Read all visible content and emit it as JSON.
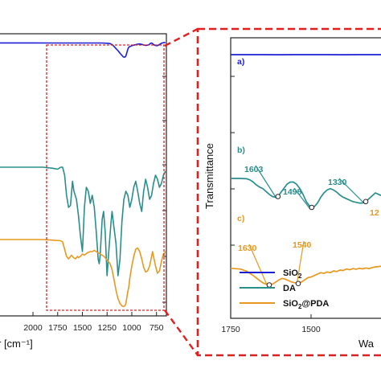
{
  "chart_data": [
    {
      "type": "line",
      "panel": "overview",
      "xlabel": "r [cm⁻¹]",
      "xlim": [
        2350,
        650
      ],
      "x_reversed": true,
      "grid": false,
      "x_ticks": [
        "2000",
        "1750",
        "1500",
        "1250",
        "1000",
        "750"
      ],
      "series": [
        {
          "id": "sio2",
          "color": "#1d1dd8",
          "x": [
            2350,
            2000,
            1800,
            1600,
            1400,
            1300,
            1250,
            1220,
            1200,
            1180,
            1160,
            1140,
            1120,
            1100,
            1085,
            1070,
            1060,
            1050,
            1040,
            1030,
            1000,
            960,
            940,
            920,
            900,
            880,
            860,
            840,
            820,
            810,
            800,
            790,
            780,
            760,
            740,
            720,
            700,
            680,
            660
          ],
          "y": [
            0.935,
            0.935,
            0.934,
            0.933,
            0.932,
            0.93,
            0.92,
            0.9,
            0.84,
            0.74,
            0.62,
            0.5,
            0.36,
            0.23,
            0.14,
            0.13,
            0.2,
            0.38,
            0.58,
            0.7,
            0.78,
            0.84,
            0.87,
            0.88,
            0.86,
            0.82,
            0.8,
            0.81,
            0.86,
            0.92,
            0.93,
            0.9,
            0.84,
            0.79,
            0.78,
            0.85,
            0.92,
            0.95,
            0.96
          ]
        },
        {
          "id": "da",
          "color": "#2a8f8c",
          "x": [
            2350,
            2100,
            1900,
            1800,
            1750,
            1720,
            1700,
            1680,
            1660,
            1640,
            1620,
            1600,
            1585,
            1560,
            1540,
            1520,
            1500,
            1490,
            1480,
            1460,
            1440,
            1420,
            1400,
            1380,
            1360,
            1340,
            1330,
            1320,
            1300,
            1285,
            1270,
            1250,
            1230,
            1210,
            1200,
            1180,
            1160,
            1140,
            1120,
            1100,
            1080,
            1060,
            1040,
            1020,
            1000,
            980,
            960,
            940,
            920,
            900,
            880,
            860,
            840,
            820,
            800,
            780,
            760,
            740,
            720,
            700,
            680,
            660
          ],
          "y": [
            0.82,
            0.82,
            0.82,
            0.815,
            0.81,
            0.82,
            0.82,
            0.78,
            0.68,
            0.62,
            0.63,
            0.75,
            0.7,
            0.66,
            0.58,
            0.48,
            0.4,
            0.5,
            0.62,
            0.72,
            0.7,
            0.64,
            0.68,
            0.62,
            0.5,
            0.36,
            0.34,
            0.38,
            0.56,
            0.6,
            0.5,
            0.28,
            0.42,
            0.55,
            0.6,
            0.52,
            0.44,
            0.28,
            0.36,
            0.55,
            0.66,
            0.7,
            0.68,
            0.62,
            0.66,
            0.72,
            0.75,
            0.7,
            0.64,
            0.6,
            0.7,
            0.76,
            0.72,
            0.66,
            0.68,
            0.74,
            0.78,
            0.76,
            0.72,
            0.74,
            0.78,
            0.8
          ]
        },
        {
          "id": "sio2pda",
          "color": "#e8981e",
          "x": [
            2350,
            2100,
            1900,
            1800,
            1720,
            1700,
            1680,
            1660,
            1640,
            1630,
            1610,
            1590,
            1570,
            1550,
            1540,
            1520,
            1500,
            1480,
            1450,
            1420,
            1400,
            1380,
            1360,
            1340,
            1320,
            1300,
            1280,
            1260,
            1240,
            1220,
            1200,
            1180,
            1160,
            1140,
            1120,
            1100,
            1085,
            1070,
            1060,
            1050,
            1040,
            1030,
            1020,
            1000,
            980,
            960,
            940,
            920,
            900,
            880,
            860,
            840,
            820,
            800,
            790,
            780,
            760,
            740,
            720,
            700,
            680,
            660
          ],
          "y": [
            0.6,
            0.6,
            0.6,
            0.595,
            0.59,
            0.58,
            0.52,
            0.46,
            0.44,
            0.45,
            0.47,
            0.45,
            0.44,
            0.46,
            0.45,
            0.46,
            0.48,
            0.47,
            0.49,
            0.5,
            0.5,
            0.51,
            0.5,
            0.49,
            0.48,
            0.47,
            0.46,
            0.44,
            0.42,
            0.4,
            0.35,
            0.27,
            0.18,
            0.11,
            0.07,
            0.05,
            0.045,
            0.05,
            0.07,
            0.12,
            0.17,
            0.21,
            0.28,
            0.38,
            0.46,
            0.52,
            0.53,
            0.5,
            0.44,
            0.37,
            0.33,
            0.34,
            0.38,
            0.46,
            0.5,
            0.46,
            0.38,
            0.32,
            0.34,
            0.42,
            0.48,
            0.5
          ]
        }
      ]
    },
    {
      "type": "line",
      "panel": "zoom",
      "xlabel": "Wa",
      "ylabel": "Transmittance",
      "xlim": [
        1750,
        1250
      ],
      "x_reversed": true,
      "grid": false,
      "x_ticks": [
        "1750",
        "1500"
      ],
      "legend_position": "bottom-left",
      "series": [
        {
          "id": "sio2",
          "name": "SiO₂",
          "name_base": "SiO",
          "name_sub": "2",
          "panel_label": "a)",
          "color": "#1d1dd8",
          "x": [
            1750,
            1700,
            1650,
            1600,
            1550,
            1500,
            1450,
            1400,
            1350,
            1300,
            1250
          ],
          "y": [
            0.9,
            0.898,
            0.9,
            0.897,
            0.899,
            0.898,
            0.9,
            0.897,
            0.899,
            0.898,
            0.897
          ]
        },
        {
          "id": "da",
          "name": "DA",
          "panel_label": "b)",
          "color": "#2a8f8c",
          "x": [
            1750,
            1720,
            1700,
            1690,
            1680,
            1670,
            1660,
            1650,
            1640,
            1630,
            1620,
            1610,
            1603,
            1595,
            1585,
            1575,
            1565,
            1555,
            1545,
            1535,
            1525,
            1515,
            1505,
            1498,
            1490,
            1480,
            1470,
            1460,
            1450,
            1440,
            1430,
            1420,
            1410,
            1400,
            1390,
            1380,
            1370,
            1360,
            1350,
            1340,
            1330,
            1320,
            1310,
            1300,
            1290,
            1280,
            1270,
            1260,
            1250
          ],
          "y": [
            0.6,
            0.6,
            0.598,
            0.59,
            0.575,
            0.555,
            0.54,
            0.53,
            0.51,
            0.49,
            0.475,
            0.47,
            0.475,
            0.5,
            0.53,
            0.56,
            0.575,
            0.575,
            0.56,
            0.53,
            0.49,
            0.44,
            0.41,
            0.4,
            0.405,
            0.43,
            0.47,
            0.5,
            0.52,
            0.53,
            0.52,
            0.505,
            0.485,
            0.47,
            0.46,
            0.45,
            0.44,
            0.435,
            0.43,
            0.43,
            0.44,
            0.46,
            0.48,
            0.5,
            0.49,
            0.48,
            0.47,
            0.47,
            0.48
          ]
        },
        {
          "id": "sio2pda",
          "name": "SiO₂@PDA",
          "name_base": "SiO",
          "name_sub": "2",
          "name_rest": "@PDA",
          "panel_label": "c)",
          "color": "#e8981e",
          "x": [
            1750,
            1720,
            1700,
            1680,
            1660,
            1650,
            1640,
            1630,
            1620,
            1610,
            1600,
            1590,
            1580,
            1570,
            1560,
            1550,
            1540,
            1530,
            1520,
            1510,
            1500,
            1490,
            1480,
            1470,
            1460,
            1450,
            1440,
            1430,
            1420,
            1410,
            1400,
            1390,
            1380,
            1370,
            1360,
            1350,
            1340,
            1330,
            1320,
            1310,
            1300,
            1290,
            1280,
            1270,
            1260,
            1250
          ],
          "y": [
            0.34,
            0.335,
            0.32,
            0.29,
            0.255,
            0.24,
            0.23,
            0.225,
            0.23,
            0.245,
            0.26,
            0.27,
            0.265,
            0.255,
            0.245,
            0.24,
            0.235,
            0.245,
            0.26,
            0.275,
            0.28,
            0.29,
            0.3,
            0.31,
            0.305,
            0.315,
            0.31,
            0.322,
            0.318,
            0.328,
            0.325,
            0.335,
            0.33,
            0.338,
            0.334,
            0.34,
            0.336,
            0.342,
            0.338,
            0.345,
            0.35,
            0.352,
            0.355,
            0.352,
            0.356,
            0.358
          ]
        }
      ],
      "annotations": [
        {
          "text": "1603",
          "series": "da",
          "x": 1603,
          "y": 0.475
        },
        {
          "text": "1498",
          "series": "da",
          "x": 1498,
          "y": 0.4
        },
        {
          "text": "1330",
          "series": "da",
          "x": 1330,
          "y": 0.44
        },
        {
          "text": "1630",
          "series": "sio2pda",
          "x": 1630,
          "y": 0.225
        },
        {
          "text": "1540",
          "series": "sio2pda",
          "x": 1540,
          "y": 0.235
        },
        {
          "text": "12",
          "series": "sio2pda",
          "x": 1270,
          "y": 0.352
        }
      ]
    }
  ]
}
